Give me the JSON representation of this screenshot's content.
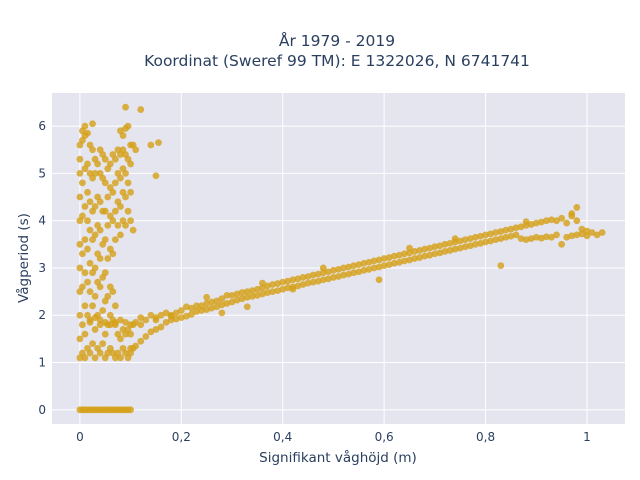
{
  "chart_data": {
    "type": "scatter",
    "title_line1": "År 1979 - 2019",
    "title_line2": "Koordinat (Sweref 99 TM): E 1322026, N 6741741",
    "xlabel": "Signifikant våghöjd (m)",
    "ylabel": "Vågperiod (s)",
    "xlim": [
      -0.055,
      1.075
    ],
    "ylim": [
      -0.3,
      6.7
    ],
    "x_ticks": [
      0,
      0.2,
      0.4,
      0.6,
      0.8,
      1
    ],
    "x_tick_labels": [
      "0",
      "0,2",
      "0,4",
      "0,6",
      "0,8",
      "1"
    ],
    "y_ticks": [
      0,
      1,
      2,
      3,
      4,
      5,
      6
    ],
    "y_tick_labels": [
      "0",
      "1",
      "2",
      "3",
      "4",
      "5",
      "6"
    ],
    "grid": true,
    "background": "#e5e5f0",
    "marker_color": "#d4a017",
    "points": [
      [
        0.0,
        0.0
      ],
      [
        0.005,
        0.0
      ],
      [
        0.01,
        0.0
      ],
      [
        0.015,
        0.0
      ],
      [
        0.02,
        0.0
      ],
      [
        0.025,
        0.0
      ],
      [
        0.03,
        0.0
      ],
      [
        0.035,
        0.0
      ],
      [
        0.04,
        0.0
      ],
      [
        0.045,
        0.0
      ],
      [
        0.05,
        0.0
      ],
      [
        0.055,
        0.0
      ],
      [
        0.06,
        0.0
      ],
      [
        0.065,
        0.0
      ],
      [
        0.07,
        0.0
      ],
      [
        0.075,
        0.0
      ],
      [
        0.08,
        0.0
      ],
      [
        0.085,
        0.0
      ],
      [
        0.09,
        0.0
      ],
      [
        0.095,
        0.0
      ],
      [
        0.1,
        0.0
      ],
      [
        0.0,
        1.1
      ],
      [
        0.0,
        1.5
      ],
      [
        0.0,
        2.0
      ],
      [
        0.0,
        2.5
      ],
      [
        0.0,
        3.0
      ],
      [
        0.0,
        3.5
      ],
      [
        0.0,
        4.0
      ],
      [
        0.0,
        4.5
      ],
      [
        0.0,
        5.0
      ],
      [
        0.0,
        5.3
      ],
      [
        0.0,
        5.6
      ],
      [
        0.005,
        1.2
      ],
      [
        0.005,
        1.8
      ],
      [
        0.005,
        2.6
      ],
      [
        0.005,
        3.3
      ],
      [
        0.005,
        4.1
      ],
      [
        0.005,
        4.8
      ],
      [
        0.005,
        5.7
      ],
      [
        0.005,
        5.9
      ],
      [
        0.01,
        1.1
      ],
      [
        0.01,
        1.6
      ],
      [
        0.01,
        2.2
      ],
      [
        0.01,
        2.9
      ],
      [
        0.01,
        3.6
      ],
      [
        0.01,
        4.3
      ],
      [
        0.01,
        5.1
      ],
      [
        0.01,
        5.8
      ],
      [
        0.01,
        6.0
      ],
      [
        0.015,
        1.3
      ],
      [
        0.015,
        2.0
      ],
      [
        0.015,
        2.7
      ],
      [
        0.015,
        3.4
      ],
      [
        0.015,
        4.0
      ],
      [
        0.015,
        4.6
      ],
      [
        0.015,
        5.2
      ],
      [
        0.015,
        5.85
      ],
      [
        0.02,
        1.2
      ],
      [
        0.02,
        1.9
      ],
      [
        0.02,
        2.5
      ],
      [
        0.02,
        3.1
      ],
      [
        0.02,
        3.8
      ],
      [
        0.02,
        4.4
      ],
      [
        0.02,
        5.0
      ],
      [
        0.02,
        5.6
      ],
      [
        0.025,
        1.4
      ],
      [
        0.025,
        2.2
      ],
      [
        0.025,
        2.9
      ],
      [
        0.025,
        3.6
      ],
      [
        0.025,
        4.2
      ],
      [
        0.025,
        4.9
      ],
      [
        0.025,
        5.5
      ],
      [
        0.025,
        6.05
      ],
      [
        0.03,
        1.1
      ],
      [
        0.03,
        1.7
      ],
      [
        0.03,
        2.4
      ],
      [
        0.03,
        3.0
      ],
      [
        0.03,
        3.7
      ],
      [
        0.03,
        4.3
      ],
      [
        0.03,
        5.0
      ],
      [
        0.03,
        5.3
      ],
      [
        0.035,
        1.3
      ],
      [
        0.035,
        2.0
      ],
      [
        0.035,
        2.7
      ],
      [
        0.035,
        3.3
      ],
      [
        0.035,
        3.9
      ],
      [
        0.035,
        4.5
      ],
      [
        0.035,
        5.2
      ],
      [
        0.04,
        1.2
      ],
      [
        0.04,
        1.8
      ],
      [
        0.04,
        2.6
      ],
      [
        0.04,
        3.2
      ],
      [
        0.04,
        3.8
      ],
      [
        0.04,
        4.4
      ],
      [
        0.04,
        5.0
      ],
      [
        0.04,
        5.5
      ],
      [
        0.045,
        1.4
      ],
      [
        0.045,
        2.1
      ],
      [
        0.045,
        2.8
      ],
      [
        0.045,
        3.5
      ],
      [
        0.045,
        4.2
      ],
      [
        0.045,
        4.9
      ],
      [
        0.045,
        5.4
      ],
      [
        0.05,
        1.1
      ],
      [
        0.05,
        1.6
      ],
      [
        0.05,
        2.3
      ],
      [
        0.05,
        2.9
      ],
      [
        0.05,
        3.6
      ],
      [
        0.05,
        4.2
      ],
      [
        0.05,
        4.8
      ],
      [
        0.05,
        5.3
      ],
      [
        0.055,
        1.2
      ],
      [
        0.055,
        1.8
      ],
      [
        0.055,
        2.4
      ],
      [
        0.055,
        3.2
      ],
      [
        0.055,
        3.9
      ],
      [
        0.055,
        4.5
      ],
      [
        0.055,
        5.1
      ],
      [
        0.06,
        1.3
      ],
      [
        0.06,
        2.0
      ],
      [
        0.06,
        2.6
      ],
      [
        0.06,
        3.4
      ],
      [
        0.06,
        4.1
      ],
      [
        0.06,
        4.7
      ],
      [
        0.06,
        5.2
      ],
      [
        0.065,
        1.2
      ],
      [
        0.065,
        1.9
      ],
      [
        0.065,
        2.5
      ],
      [
        0.065,
        3.3
      ],
      [
        0.065,
        4.0
      ],
      [
        0.065,
        4.6
      ],
      [
        0.065,
        5.4
      ],
      [
        0.07,
        1.1
      ],
      [
        0.07,
        1.8
      ],
      [
        0.07,
        2.2
      ],
      [
        0.07,
        3.6
      ],
      [
        0.07,
        4.2
      ],
      [
        0.07,
        4.8
      ],
      [
        0.07,
        5.3
      ],
      [
        0.075,
        1.2
      ],
      [
        0.075,
        1.6
      ],
      [
        0.075,
        3.9
      ],
      [
        0.075,
        4.4
      ],
      [
        0.075,
        5.0
      ],
      [
        0.075,
        5.5
      ],
      [
        0.08,
        1.1
      ],
      [
        0.08,
        1.5
      ],
      [
        0.08,
        3.7
      ],
      [
        0.08,
        4.3
      ],
      [
        0.08,
        4.9
      ],
      [
        0.08,
        5.4
      ],
      [
        0.08,
        5.9
      ],
      [
        0.085,
        1.3
      ],
      [
        0.085,
        1.7
      ],
      [
        0.085,
        4.0
      ],
      [
        0.085,
        4.6
      ],
      [
        0.085,
        5.1
      ],
      [
        0.085,
        5.5
      ],
      [
        0.085,
        5.8
      ],
      [
        0.09,
        1.2
      ],
      [
        0.09,
        1.6
      ],
      [
        0.09,
        3.9
      ],
      [
        0.09,
        4.5
      ],
      [
        0.09,
        5.0
      ],
      [
        0.09,
        5.4
      ],
      [
        0.09,
        5.95
      ],
      [
        0.095,
        1.1
      ],
      [
        0.095,
        1.7
      ],
      [
        0.095,
        4.2
      ],
      [
        0.095,
        4.8
      ],
      [
        0.095,
        5.3
      ],
      [
        0.095,
        6.0
      ],
      [
        0.1,
        1.2
      ],
      [
        0.1,
        1.6
      ],
      [
        0.1,
        4.0
      ],
      [
        0.1,
        4.6
      ],
      [
        0.1,
        5.2
      ],
      [
        0.1,
        5.6
      ],
      [
        0.105,
        1.3
      ],
      [
        0.105,
        1.8
      ],
      [
        0.105,
        3.8
      ],
      [
        0.105,
        5.6
      ],
      [
        0.09,
        6.4
      ],
      [
        0.12,
        6.35
      ],
      [
        0.14,
        5.6
      ],
      [
        0.155,
        5.65
      ],
      [
        0.15,
        4.95
      ],
      [
        0.11,
        5.5
      ],
      [
        0.02,
        1.85
      ],
      [
        0.03,
        1.95
      ],
      [
        0.04,
        1.9
      ],
      [
        0.05,
        1.85
      ],
      [
        0.06,
        1.8
      ],
      [
        0.07,
        1.85
      ],
      [
        0.08,
        1.9
      ],
      [
        0.09,
        1.85
      ],
      [
        0.1,
        1.8
      ],
      [
        0.11,
        1.85
      ],
      [
        0.12,
        1.8
      ],
      [
        0.1,
        1.3
      ],
      [
        0.11,
        1.35
      ],
      [
        0.12,
        1.45
      ],
      [
        0.13,
        1.55
      ],
      [
        0.14,
        1.65
      ],
      [
        0.15,
        1.7
      ],
      [
        0.16,
        1.75
      ],
      [
        0.12,
        1.95
      ],
      [
        0.13,
        1.9
      ],
      [
        0.14,
        2.0
      ],
      [
        0.15,
        1.95
      ],
      [
        0.16,
        2.0
      ],
      [
        0.17,
        2.05
      ],
      [
        0.18,
        2.0
      ],
      [
        0.19,
        2.05
      ],
      [
        0.2,
        2.1
      ],
      [
        0.17,
        1.85
      ],
      [
        0.18,
        1.9
      ],
      [
        0.19,
        1.92
      ],
      [
        0.2,
        1.95
      ],
      [
        0.21,
        1.98
      ],
      [
        0.22,
        2.02
      ],
      [
        0.21,
        2.18
      ],
      [
        0.22,
        2.15
      ],
      [
        0.23,
        2.2
      ],
      [
        0.24,
        2.2
      ],
      [
        0.25,
        2.25
      ],
      [
        0.26,
        2.28
      ],
      [
        0.27,
        2.3
      ],
      [
        0.28,
        2.35
      ],
      [
        0.23,
        2.08
      ],
      [
        0.24,
        2.1
      ],
      [
        0.25,
        2.12
      ],
      [
        0.26,
        2.15
      ],
      [
        0.27,
        2.18
      ],
      [
        0.28,
        2.22
      ],
      [
        0.29,
        2.25
      ],
      [
        0.3,
        2.28
      ],
      [
        0.29,
        2.42
      ],
      [
        0.3,
        2.42
      ],
      [
        0.31,
        2.45
      ],
      [
        0.32,
        2.48
      ],
      [
        0.33,
        2.5
      ],
      [
        0.34,
        2.52
      ],
      [
        0.35,
        2.55
      ],
      [
        0.36,
        2.58
      ],
      [
        0.31,
        2.32
      ],
      [
        0.32,
        2.35
      ],
      [
        0.33,
        2.38
      ],
      [
        0.34,
        2.4
      ],
      [
        0.35,
        2.42
      ],
      [
        0.36,
        2.45
      ],
      [
        0.37,
        2.48
      ],
      [
        0.38,
        2.5
      ],
      [
        0.37,
        2.62
      ],
      [
        0.38,
        2.65
      ],
      [
        0.39,
        2.67
      ],
      [
        0.4,
        2.7
      ],
      [
        0.41,
        2.72
      ],
      [
        0.42,
        2.75
      ],
      [
        0.43,
        2.77
      ],
      [
        0.44,
        2.8
      ],
      [
        0.39,
        2.52
      ],
      [
        0.4,
        2.55
      ],
      [
        0.41,
        2.58
      ],
      [
        0.42,
        2.6
      ],
      [
        0.43,
        2.62
      ],
      [
        0.44,
        2.65
      ],
      [
        0.45,
        2.68
      ],
      [
        0.46,
        2.7
      ],
      [
        0.45,
        2.82
      ],
      [
        0.46,
        2.85
      ],
      [
        0.47,
        2.87
      ],
      [
        0.48,
        2.9
      ],
      [
        0.49,
        2.92
      ],
      [
        0.5,
        2.95
      ],
      [
        0.51,
        2.97
      ],
      [
        0.52,
        3.0
      ],
      [
        0.47,
        2.72
      ],
      [
        0.48,
        2.75
      ],
      [
        0.49,
        2.77
      ],
      [
        0.5,
        2.8
      ],
      [
        0.51,
        2.82
      ],
      [
        0.52,
        2.85
      ],
      [
        0.53,
        2.87
      ],
      [
        0.54,
        2.9
      ],
      [
        0.53,
        3.02
      ],
      [
        0.54,
        3.05
      ],
      [
        0.55,
        3.07
      ],
      [
        0.56,
        3.1
      ],
      [
        0.57,
        3.12
      ],
      [
        0.58,
        3.15
      ],
      [
        0.59,
        3.17
      ],
      [
        0.6,
        3.2
      ],
      [
        0.55,
        2.92
      ],
      [
        0.56,
        2.95
      ],
      [
        0.57,
        2.97
      ],
      [
        0.58,
        3.0
      ],
      [
        0.59,
        3.02
      ],
      [
        0.6,
        3.05
      ],
      [
        0.61,
        3.07
      ],
      [
        0.62,
        3.1
      ],
      [
        0.61,
        3.22
      ],
      [
        0.62,
        3.25
      ],
      [
        0.63,
        3.27
      ],
      [
        0.64,
        3.3
      ],
      [
        0.65,
        3.32
      ],
      [
        0.66,
        3.35
      ],
      [
        0.67,
        3.37
      ],
      [
        0.68,
        3.4
      ],
      [
        0.63,
        3.12
      ],
      [
        0.64,
        3.15
      ],
      [
        0.65,
        3.17
      ],
      [
        0.66,
        3.2
      ],
      [
        0.67,
        3.22
      ],
      [
        0.68,
        3.25
      ],
      [
        0.69,
        3.27
      ],
      [
        0.7,
        3.3
      ],
      [
        0.69,
        3.42
      ],
      [
        0.7,
        3.45
      ],
      [
        0.71,
        3.47
      ],
      [
        0.72,
        3.5
      ],
      [
        0.73,
        3.52
      ],
      [
        0.74,
        3.55
      ],
      [
        0.75,
        3.57
      ],
      [
        0.76,
        3.6
      ],
      [
        0.71,
        3.32
      ],
      [
        0.72,
        3.35
      ],
      [
        0.73,
        3.37
      ],
      [
        0.74,
        3.4
      ],
      [
        0.75,
        3.42
      ],
      [
        0.76,
        3.45
      ],
      [
        0.77,
        3.47
      ],
      [
        0.78,
        3.5
      ],
      [
        0.77,
        3.62
      ],
      [
        0.78,
        3.65
      ],
      [
        0.79,
        3.67
      ],
      [
        0.8,
        3.7
      ],
      [
        0.81,
        3.72
      ],
      [
        0.82,
        3.75
      ],
      [
        0.83,
        3.77
      ],
      [
        0.84,
        3.8
      ],
      [
        0.79,
        3.52
      ],
      [
        0.8,
        3.55
      ],
      [
        0.81,
        3.57
      ],
      [
        0.82,
        3.6
      ],
      [
        0.83,
        3.62
      ],
      [
        0.84,
        3.65
      ],
      [
        0.85,
        3.67
      ],
      [
        0.86,
        3.7
      ],
      [
        0.85,
        3.82
      ],
      [
        0.86,
        3.85
      ],
      [
        0.87,
        3.87
      ],
      [
        0.88,
        3.9
      ],
      [
        0.89,
        3.92
      ],
      [
        0.9,
        3.95
      ],
      [
        0.91,
        3.97
      ],
      [
        0.92,
        4.0
      ],
      [
        0.87,
        3.62
      ],
      [
        0.88,
        3.6
      ],
      [
        0.89,
        3.62
      ],
      [
        0.9,
        3.65
      ],
      [
        0.91,
        3.63
      ],
      [
        0.92,
        3.66
      ],
      [
        0.93,
        3.65
      ],
      [
        0.94,
        3.7
      ],
      [
        0.93,
        4.02
      ],
      [
        0.94,
        4.0
      ],
      [
        0.95,
        4.05
      ],
      [
        0.96,
        3.95
      ],
      [
        0.97,
        4.1
      ],
      [
        0.98,
        4.0
      ],
      [
        0.96,
        3.65
      ],
      [
        0.97,
        3.68
      ],
      [
        0.98,
        3.7
      ],
      [
        0.99,
        3.72
      ],
      [
        1.0,
        3.68
      ],
      [
        1.01,
        3.75
      ],
      [
        1.02,
        3.7
      ],
      [
        1.03,
        3.75
      ],
      [
        0.99,
        3.82
      ],
      [
        1.0,
        3.78
      ],
      [
        0.98,
        4.28
      ],
      [
        0.97,
        4.15
      ],
      [
        0.95,
        3.5
      ],
      [
        0.83,
        3.05
      ],
      [
        0.59,
        2.75
      ],
      [
        0.42,
        2.55
      ],
      [
        0.33,
        2.18
      ],
      [
        0.28,
        2.05
      ],
      [
        0.18,
        1.98
      ],
      [
        0.15,
        1.9
      ],
      [
        0.25,
        2.38
      ],
      [
        0.36,
        2.68
      ],
      [
        0.48,
        3.0
      ],
      [
        0.65,
        3.42
      ],
      [
        0.74,
        3.62
      ],
      [
        0.88,
        3.98
      ]
    ]
  }
}
